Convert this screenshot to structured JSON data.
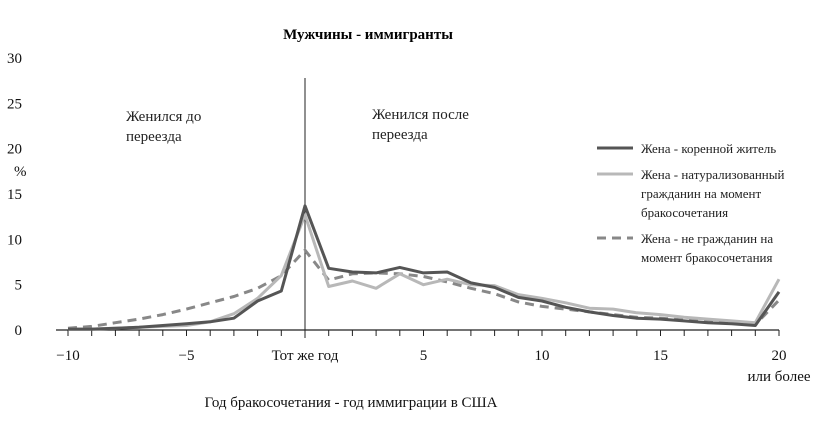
{
  "chart_data": {
    "type": "line",
    "title": "Мужчины - иммигранты",
    "xlabel": "Год бракосочетания - год иммиграции в США",
    "ylabel": "%",
    "xlim": [
      -10,
      20
    ],
    "ylim": [
      0,
      30
    ],
    "x_ticks": [
      {
        "value": -10,
        "label": "−10"
      },
      {
        "value": -5,
        "label": "−5"
      },
      {
        "value": 0,
        "label": "Тот же год"
      },
      {
        "value": 5,
        "label": "5"
      },
      {
        "value": 10,
        "label": "10"
      },
      {
        "value": 15,
        "label": "15"
      },
      {
        "value": 20,
        "label": "20"
      }
    ],
    "x_last_suffix": "или более",
    "y_ticks": [
      0,
      5,
      10,
      15,
      20,
      25,
      30
    ],
    "reference_line_x": 0,
    "annotations": {
      "before": [
        "Женился до",
        "переезда"
      ],
      "after": [
        "Женился после",
        "переезда"
      ]
    },
    "x": [
      -10,
      -9,
      -8,
      -7,
      -6,
      -5,
      -4,
      -3,
      -2,
      -1,
      0,
      1,
      2,
      3,
      4,
      5,
      6,
      7,
      8,
      9,
      10,
      11,
      12,
      13,
      14,
      15,
      16,
      17,
      18,
      19,
      20
    ],
    "series": [
      {
        "name": "Жена - коренной житель",
        "legend_lines": [
          "Жена - коренной житель"
        ],
        "color": "#555555",
        "dash": "solid",
        "values": [
          0.1,
          0.1,
          0.2,
          0.3,
          0.5,
          0.7,
          0.9,
          1.3,
          3.2,
          4.3,
          13.7,
          6.8,
          6.4,
          6.3,
          6.9,
          6.3,
          6.4,
          5.2,
          4.7,
          3.6,
          3.2,
          2.5,
          2.0,
          1.6,
          1.3,
          1.2,
          1.0,
          0.8,
          0.7,
          0.5,
          4.2
        ]
      },
      {
        "name": "Жена - натурализованный гражданин на момент бракосочетания",
        "legend_lines": [
          "Жена - натурализованный",
          "гражданин на момент",
          "бракосочетания"
        ],
        "color": "#b8b8b8",
        "dash": "solid",
        "values": [
          0.1,
          0.1,
          0.2,
          0.3,
          0.4,
          0.5,
          0.9,
          1.8,
          3.5,
          6.0,
          12.7,
          4.8,
          5.4,
          4.6,
          6.2,
          5.0,
          5.6,
          5.0,
          4.9,
          3.9,
          3.5,
          3.0,
          2.4,
          2.3,
          1.9,
          1.7,
          1.4,
          1.2,
          1.0,
          0.8,
          5.6
        ]
      },
      {
        "name": "Жена - не гражданин на момент бракосочетания",
        "legend_lines": [
          "Жена - не гражданин на",
          "момент бракосочетания"
        ],
        "color": "#888888",
        "dash": "dashed",
        "values": [
          0.2,
          0.4,
          0.8,
          1.2,
          1.7,
          2.3,
          3.0,
          3.7,
          4.6,
          6.0,
          8.8,
          5.5,
          6.2,
          6.3,
          6.2,
          5.9,
          5.3,
          4.6,
          4.0,
          3.1,
          2.6,
          2.3,
          2.0,
          1.7,
          1.4,
          1.3,
          1.1,
          0.9,
          0.8,
          0.6,
          3.3
        ]
      }
    ],
    "legend_position": "right"
  }
}
